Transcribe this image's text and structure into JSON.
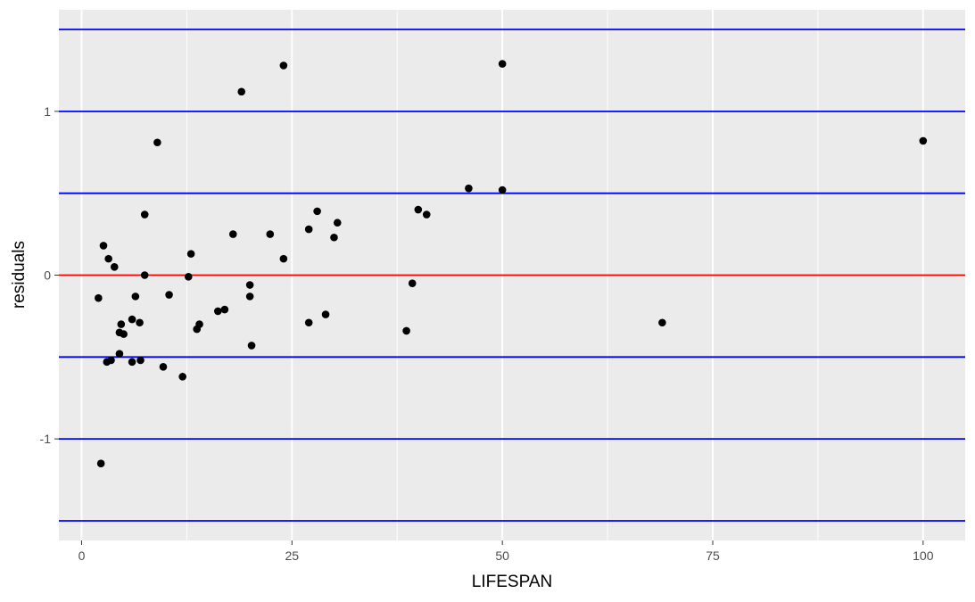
{
  "chart_data": {
    "type": "scatter",
    "title": "",
    "xlabel": "LIFESPAN",
    "ylabel": "residuals",
    "xlim": [
      -2.7,
      105
    ],
    "ylim": [
      -1.62,
      1.62
    ],
    "x_ticks": [
      0,
      25,
      50,
      75,
      100
    ],
    "x_tick_labels": [
      "0",
      "25",
      "50",
      "75",
      "100"
    ],
    "y_ticks": [
      -1,
      0,
      1
    ],
    "y_tick_labels": [
      "-1",
      "0",
      "1"
    ],
    "grid": true,
    "background": "#ebebeb",
    "gridline_color": "#ffffff",
    "point_color": "#000000",
    "reference_lines": [
      {
        "y": 1.5,
        "color": "#0000ff"
      },
      {
        "y": 1.0,
        "color": "#0000ff"
      },
      {
        "y": 0.5,
        "color": "#0000ff"
      },
      {
        "y": 0.0,
        "color": "#ff0000"
      },
      {
        "y": -0.5,
        "color": "#0000ff"
      },
      {
        "y": -1.0,
        "color": "#0000ff"
      },
      {
        "y": -1.5,
        "color": "#0000ff"
      }
    ],
    "points": [
      {
        "x": 2.0,
        "y": -0.14
      },
      {
        "x": 2.3,
        "y": -1.15
      },
      {
        "x": 2.6,
        "y": 0.18
      },
      {
        "x": 3.0,
        "y": -0.53
      },
      {
        "x": 3.2,
        "y": 0.1
      },
      {
        "x": 3.5,
        "y": -0.52
      },
      {
        "x": 3.9,
        "y": 0.05
      },
      {
        "x": 4.5,
        "y": -0.35
      },
      {
        "x": 4.5,
        "y": -0.48
      },
      {
        "x": 4.7,
        "y": -0.3
      },
      {
        "x": 5.0,
        "y": -0.36
      },
      {
        "x": 6.0,
        "y": -0.27
      },
      {
        "x": 6.0,
        "y": -0.53
      },
      {
        "x": 6.4,
        "y": -0.13
      },
      {
        "x": 6.9,
        "y": -0.29
      },
      {
        "x": 7.0,
        "y": -0.52
      },
      {
        "x": 7.5,
        "y": 0.37
      },
      {
        "x": 7.5,
        "y": 0.0
      },
      {
        "x": 9.0,
        "y": 0.81
      },
      {
        "x": 9.7,
        "y": -0.56
      },
      {
        "x": 10.4,
        "y": -0.12
      },
      {
        "x": 12.0,
        "y": -0.62
      },
      {
        "x": 12.7,
        "y": -0.01
      },
      {
        "x": 13.0,
        "y": 0.13
      },
      {
        "x": 13.7,
        "y": -0.33
      },
      {
        "x": 14.0,
        "y": -0.3
      },
      {
        "x": 16.2,
        "y": -0.22
      },
      {
        "x": 17.0,
        "y": -0.21
      },
      {
        "x": 18.0,
        "y": 0.25
      },
      {
        "x": 19.0,
        "y": 1.12
      },
      {
        "x": 20.0,
        "y": -0.06
      },
      {
        "x": 20.0,
        "y": -0.13
      },
      {
        "x": 20.2,
        "y": -0.43
      },
      {
        "x": 22.4,
        "y": 0.25
      },
      {
        "x": 24.0,
        "y": 1.28
      },
      {
        "x": 24.0,
        "y": 0.1
      },
      {
        "x": 27.0,
        "y": 0.28
      },
      {
        "x": 27.0,
        "y": -0.29
      },
      {
        "x": 28.0,
        "y": 0.39
      },
      {
        "x": 29.0,
        "y": -0.24
      },
      {
        "x": 30.0,
        "y": 0.23
      },
      {
        "x": 30.4,
        "y": 0.32
      },
      {
        "x": 38.6,
        "y": -0.34
      },
      {
        "x": 39.3,
        "y": -0.05
      },
      {
        "x": 40.0,
        "y": 0.4
      },
      {
        "x": 41.0,
        "y": 0.37
      },
      {
        "x": 46.0,
        "y": 0.53
      },
      {
        "x": 50.0,
        "y": 1.29
      },
      {
        "x": 50.0,
        "y": 0.52
      },
      {
        "x": 69.0,
        "y": -0.29
      },
      {
        "x": 100.0,
        "y": 0.82
      }
    ]
  }
}
